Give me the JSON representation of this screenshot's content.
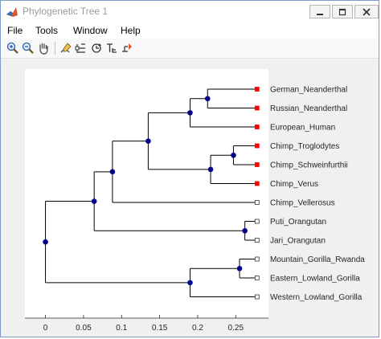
{
  "window": {
    "title": "Phylogenetic Tree 1",
    "icon": "matlab-icon",
    "controls": [
      "minimize-icon",
      "maximize-icon",
      "close-icon"
    ]
  },
  "menu": {
    "items": [
      "File",
      "Tools",
      "Window",
      "Help"
    ]
  },
  "toolbar": {
    "tools": [
      {
        "icon": "zoom-in-icon"
      },
      {
        "icon": "zoom-out-icon"
      },
      {
        "icon": "pan-hand-icon"
      },
      {
        "icon": "select-branch-icon"
      },
      {
        "icon": "collapse-expand-icon"
      },
      {
        "icon": "rotate-branch-icon"
      },
      {
        "icon": "rename-node-icon"
      },
      {
        "icon": "prune-node-icon"
      }
    ]
  },
  "chart_data": {
    "type": "phylogenetic-tree",
    "x_ticks": [
      0,
      0.05,
      0.1,
      0.15,
      0.2,
      0.25
    ],
    "x_tick_labels": [
      "0",
      "0.05",
      "0.1",
      "0.15",
      "0.2",
      "0.25"
    ],
    "xlim": [
      -0.027,
      0.293
    ],
    "leaf_x": 0.278,
    "leaves": [
      {
        "name": "German_Neanderthal",
        "marker": "red-filled-square"
      },
      {
        "name": "Russian_Neanderthal",
        "marker": "red-filled-square"
      },
      {
        "name": "European_Human",
        "marker": "red-filled-square"
      },
      {
        "name": "Chimp_Troglodytes",
        "marker": "red-filled-square"
      },
      {
        "name": "Chimp_Schweinfurthii",
        "marker": "red-filled-square"
      },
      {
        "name": "Chimp_Verus",
        "marker": "red-filled-square"
      },
      {
        "name": "Chimp_Vellerosus",
        "marker": "open-square"
      },
      {
        "name": "Puti_Orangutan",
        "marker": "open-square"
      },
      {
        "name": "Jari_Orangutan",
        "marker": "open-square"
      },
      {
        "name": "Mountain_Gorilla_Rwanda",
        "marker": "open-square"
      },
      {
        "name": "Eastern_Lowland_Gorilla",
        "marker": "open-square"
      },
      {
        "name": "Western_Lowland_Gorilla",
        "marker": "open-square"
      }
    ],
    "internal_nodes": [
      {
        "id": "N1",
        "x": 0.213,
        "children": [
          0,
          1
        ]
      },
      {
        "id": "N2",
        "x": 0.19,
        "children": [
          "N1",
          2
        ]
      },
      {
        "id": "N3",
        "x": 0.247,
        "children": [
          3,
          4
        ]
      },
      {
        "id": "N4",
        "x": 0.217,
        "children": [
          "N3",
          5
        ]
      },
      {
        "id": "N5",
        "x": 0.135,
        "children": [
          "N2",
          "N4"
        ]
      },
      {
        "id": "N6",
        "x": 0.088,
        "children": [
          "N5",
          6
        ]
      },
      {
        "id": "N7",
        "x": 0.262,
        "children": [
          7,
          8
        ]
      },
      {
        "id": "N8",
        "x": 0.064,
        "children": [
          "N6",
          "N7"
        ]
      },
      {
        "id": "N9",
        "x": 0.255,
        "children": [
          9,
          10
        ]
      },
      {
        "id": "N10",
        "x": 0.19,
        "children": [
          "N9",
          11
        ]
      },
      {
        "id": "N11",
        "x": 0.0,
        "children": [
          "N8",
          "N10"
        ]
      }
    ],
    "colors": {
      "branch": "#000000",
      "node": "#00008b",
      "leaf_selected": "#ff0000",
      "axes_bg": "#ffffff",
      "figure_bg": "#f0f0f0"
    }
  }
}
